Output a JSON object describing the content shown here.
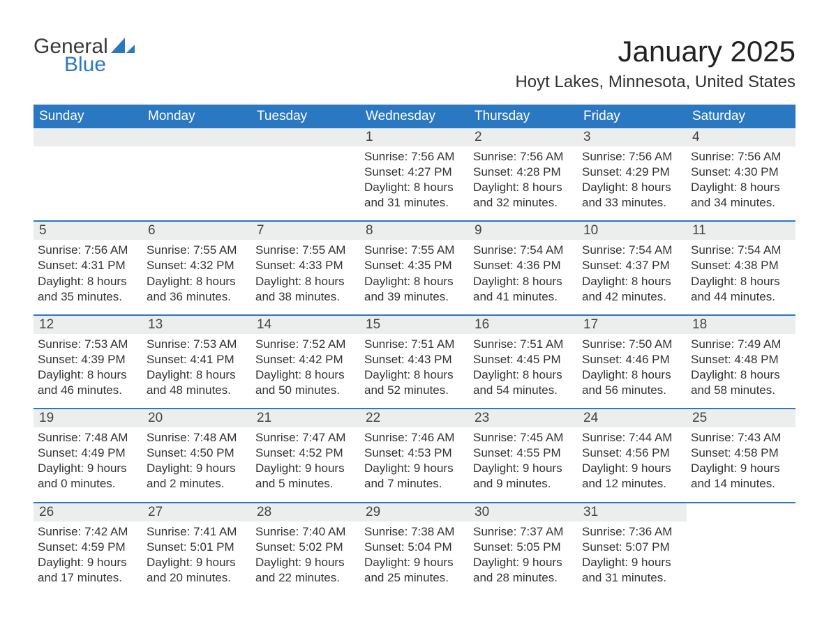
{
  "logo": {
    "general": "General",
    "blue": "Blue",
    "sail_color": "#2b78c2"
  },
  "title": "January 2025",
  "location": "Hoyt Lakes, Minnesota, United States",
  "colors": {
    "header_bg": "#2b78c2",
    "header_text": "#ffffff",
    "daynum_bg": "#eceded",
    "text": "#333333",
    "border": "#2b78c2",
    "page_bg": "#ffffff"
  },
  "weekdays": [
    "Sunday",
    "Monday",
    "Tuesday",
    "Wednesday",
    "Thursday",
    "Friday",
    "Saturday"
  ],
  "weeks": [
    [
      null,
      null,
      null,
      {
        "n": "1",
        "sunrise": "Sunrise: 7:56 AM",
        "sunset": "Sunset: 4:27 PM",
        "dl1": "Daylight: 8 hours",
        "dl2": "and 31 minutes."
      },
      {
        "n": "2",
        "sunrise": "Sunrise: 7:56 AM",
        "sunset": "Sunset: 4:28 PM",
        "dl1": "Daylight: 8 hours",
        "dl2": "and 32 minutes."
      },
      {
        "n": "3",
        "sunrise": "Sunrise: 7:56 AM",
        "sunset": "Sunset: 4:29 PM",
        "dl1": "Daylight: 8 hours",
        "dl2": "and 33 minutes."
      },
      {
        "n": "4",
        "sunrise": "Sunrise: 7:56 AM",
        "sunset": "Sunset: 4:30 PM",
        "dl1": "Daylight: 8 hours",
        "dl2": "and 34 minutes."
      }
    ],
    [
      {
        "n": "5",
        "sunrise": "Sunrise: 7:56 AM",
        "sunset": "Sunset: 4:31 PM",
        "dl1": "Daylight: 8 hours",
        "dl2": "and 35 minutes."
      },
      {
        "n": "6",
        "sunrise": "Sunrise: 7:55 AM",
        "sunset": "Sunset: 4:32 PM",
        "dl1": "Daylight: 8 hours",
        "dl2": "and 36 minutes."
      },
      {
        "n": "7",
        "sunrise": "Sunrise: 7:55 AM",
        "sunset": "Sunset: 4:33 PM",
        "dl1": "Daylight: 8 hours",
        "dl2": "and 38 minutes."
      },
      {
        "n": "8",
        "sunrise": "Sunrise: 7:55 AM",
        "sunset": "Sunset: 4:35 PM",
        "dl1": "Daylight: 8 hours",
        "dl2": "and 39 minutes."
      },
      {
        "n": "9",
        "sunrise": "Sunrise: 7:54 AM",
        "sunset": "Sunset: 4:36 PM",
        "dl1": "Daylight: 8 hours",
        "dl2": "and 41 minutes."
      },
      {
        "n": "10",
        "sunrise": "Sunrise: 7:54 AM",
        "sunset": "Sunset: 4:37 PM",
        "dl1": "Daylight: 8 hours",
        "dl2": "and 42 minutes."
      },
      {
        "n": "11",
        "sunrise": "Sunrise: 7:54 AM",
        "sunset": "Sunset: 4:38 PM",
        "dl1": "Daylight: 8 hours",
        "dl2": "and 44 minutes."
      }
    ],
    [
      {
        "n": "12",
        "sunrise": "Sunrise: 7:53 AM",
        "sunset": "Sunset: 4:39 PM",
        "dl1": "Daylight: 8 hours",
        "dl2": "and 46 minutes."
      },
      {
        "n": "13",
        "sunrise": "Sunrise: 7:53 AM",
        "sunset": "Sunset: 4:41 PM",
        "dl1": "Daylight: 8 hours",
        "dl2": "and 48 minutes."
      },
      {
        "n": "14",
        "sunrise": "Sunrise: 7:52 AM",
        "sunset": "Sunset: 4:42 PM",
        "dl1": "Daylight: 8 hours",
        "dl2": "and 50 minutes."
      },
      {
        "n": "15",
        "sunrise": "Sunrise: 7:51 AM",
        "sunset": "Sunset: 4:43 PM",
        "dl1": "Daylight: 8 hours",
        "dl2": "and 52 minutes."
      },
      {
        "n": "16",
        "sunrise": "Sunrise: 7:51 AM",
        "sunset": "Sunset: 4:45 PM",
        "dl1": "Daylight: 8 hours",
        "dl2": "and 54 minutes."
      },
      {
        "n": "17",
        "sunrise": "Sunrise: 7:50 AM",
        "sunset": "Sunset: 4:46 PM",
        "dl1": "Daylight: 8 hours",
        "dl2": "and 56 minutes."
      },
      {
        "n": "18",
        "sunrise": "Sunrise: 7:49 AM",
        "sunset": "Sunset: 4:48 PM",
        "dl1": "Daylight: 8 hours",
        "dl2": "and 58 minutes."
      }
    ],
    [
      {
        "n": "19",
        "sunrise": "Sunrise: 7:48 AM",
        "sunset": "Sunset: 4:49 PM",
        "dl1": "Daylight: 9 hours",
        "dl2": "and 0 minutes."
      },
      {
        "n": "20",
        "sunrise": "Sunrise: 7:48 AM",
        "sunset": "Sunset: 4:50 PM",
        "dl1": "Daylight: 9 hours",
        "dl2": "and 2 minutes."
      },
      {
        "n": "21",
        "sunrise": "Sunrise: 7:47 AM",
        "sunset": "Sunset: 4:52 PM",
        "dl1": "Daylight: 9 hours",
        "dl2": "and 5 minutes."
      },
      {
        "n": "22",
        "sunrise": "Sunrise: 7:46 AM",
        "sunset": "Sunset: 4:53 PM",
        "dl1": "Daylight: 9 hours",
        "dl2": "and 7 minutes."
      },
      {
        "n": "23",
        "sunrise": "Sunrise: 7:45 AM",
        "sunset": "Sunset: 4:55 PM",
        "dl1": "Daylight: 9 hours",
        "dl2": "and 9 minutes."
      },
      {
        "n": "24",
        "sunrise": "Sunrise: 7:44 AM",
        "sunset": "Sunset: 4:56 PM",
        "dl1": "Daylight: 9 hours",
        "dl2": "and 12 minutes."
      },
      {
        "n": "25",
        "sunrise": "Sunrise: 7:43 AM",
        "sunset": "Sunset: 4:58 PM",
        "dl1": "Daylight: 9 hours",
        "dl2": "and 14 minutes."
      }
    ],
    [
      {
        "n": "26",
        "sunrise": "Sunrise: 7:42 AM",
        "sunset": "Sunset: 4:59 PM",
        "dl1": "Daylight: 9 hours",
        "dl2": "and 17 minutes."
      },
      {
        "n": "27",
        "sunrise": "Sunrise: 7:41 AM",
        "sunset": "Sunset: 5:01 PM",
        "dl1": "Daylight: 9 hours",
        "dl2": "and 20 minutes."
      },
      {
        "n": "28",
        "sunrise": "Sunrise: 7:40 AM",
        "sunset": "Sunset: 5:02 PM",
        "dl1": "Daylight: 9 hours",
        "dl2": "and 22 minutes."
      },
      {
        "n": "29",
        "sunrise": "Sunrise: 7:38 AM",
        "sunset": "Sunset: 5:04 PM",
        "dl1": "Daylight: 9 hours",
        "dl2": "and 25 minutes."
      },
      {
        "n": "30",
        "sunrise": "Sunrise: 7:37 AM",
        "sunset": "Sunset: 5:05 PM",
        "dl1": "Daylight: 9 hours",
        "dl2": "and 28 minutes."
      },
      {
        "n": "31",
        "sunrise": "Sunrise: 7:36 AM",
        "sunset": "Sunset: 5:07 PM",
        "dl1": "Daylight: 9 hours",
        "dl2": "and 31 minutes."
      },
      null
    ]
  ]
}
